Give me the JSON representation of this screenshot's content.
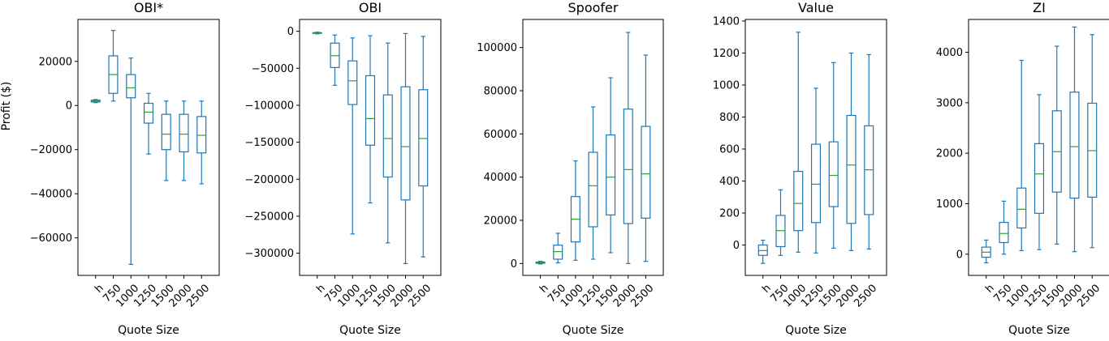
{
  "shared": {
    "xlabel": "Quote Size",
    "ylabel": "Profit ($)",
    "categories": [
      "h",
      "750",
      "1000",
      "1250",
      "1500",
      "2000",
      "2500"
    ],
    "box_color": "#1f77b4",
    "median_color": "#2ca02c"
  },
  "chart_data": [
    {
      "type": "box",
      "title": "OBI*",
      "xlabel": "Quote Size",
      "ylabel": "Profit ($)",
      "categories": [
        "h",
        "750",
        "1000",
        "1250",
        "1500",
        "2000",
        "2500"
      ],
      "ylim": [
        -77000,
        39000
      ],
      "yticks": [
        -60000,
        -40000,
        -20000,
        0,
        20000
      ],
      "ytick_labels": [
        "−60000",
        "−40000",
        "−20000",
        "0",
        "20000"
      ],
      "boxes": [
        {
          "min": 1300,
          "q1": 1600,
          "median": 2000,
          "q3": 2400,
          "max": 2700
        },
        {
          "min": 2000,
          "q1": 5500,
          "median": 14000,
          "q3": 22500,
          "max": 34000
        },
        {
          "min": -72000,
          "q1": 3500,
          "median": 8000,
          "q3": 14000,
          "max": 21500
        },
        {
          "min": -22000,
          "q1": -8000,
          "median": -3000,
          "q3": 1000,
          "max": 5500
        },
        {
          "min": -34000,
          "q1": -20000,
          "median": -13000,
          "q3": -4000,
          "max": 2000
        },
        {
          "min": -34000,
          "q1": -21000,
          "median": -13000,
          "q3": -4000,
          "max": 2000
        },
        {
          "min": -35500,
          "q1": -21500,
          "median": -13500,
          "q3": -5000,
          "max": 2000
        }
      ]
    },
    {
      "type": "box",
      "title": "OBI",
      "xlabel": "Quote Size",
      "categories": [
        "h",
        "750",
        "1000",
        "1250",
        "1500",
        "2000",
        "2500"
      ],
      "ylim": [
        -330000,
        16000
      ],
      "yticks": [
        -300000,
        -250000,
        -200000,
        -150000,
        -100000,
        -50000,
        0
      ],
      "ytick_labels": [
        "−300000",
        "−250000",
        "−200000",
        "−150000",
        "−100000",
        "−50000",
        "0"
      ],
      "boxes": [
        {
          "min": -3500,
          "q1": -2800,
          "median": -2300,
          "q3": -1800,
          "max": -1200
        },
        {
          "min": -73000,
          "q1": -49000,
          "median": -33000,
          "q3": -16000,
          "max": -5000
        },
        {
          "min": -274000,
          "q1": -99000,
          "median": -67000,
          "q3": -40000,
          "max": -9000
        },
        {
          "min": -232000,
          "q1": -154000,
          "median": -118000,
          "q3": -60000,
          "max": -6000
        },
        {
          "min": -286000,
          "q1": -197000,
          "median": -145000,
          "q3": -86000,
          "max": -16000
        },
        {
          "min": -314000,
          "q1": -228000,
          "median": -156000,
          "q3": -75000,
          "max": -3000
        },
        {
          "min": -305000,
          "q1": -209000,
          "median": -145000,
          "q3": -79000,
          "max": -7000
        }
      ]
    },
    {
      "type": "box",
      "title": "Spoofer",
      "xlabel": "Quote Size",
      "categories": [
        "h",
        "750",
        "1000",
        "1250",
        "1500",
        "2000",
        "2500"
      ],
      "ylim": [
        -5500,
        113000
      ],
      "yticks": [
        0,
        20000,
        40000,
        60000,
        80000,
        100000
      ],
      "ytick_labels": [
        "0",
        "20000",
        "40000",
        "60000",
        "80000",
        "100000"
      ],
      "boxes": [
        {
          "min": -200,
          "q1": 100,
          "median": 400,
          "q3": 700,
          "max": 1000
        },
        {
          "min": 300,
          "q1": 2000,
          "median": 5500,
          "q3": 8500,
          "max": 14000
        },
        {
          "min": 1500,
          "q1": 10000,
          "median": 20500,
          "q3": 31000,
          "max": 47500
        },
        {
          "min": 2000,
          "q1": 17000,
          "median": 36000,
          "q3": 51500,
          "max": 72500
        },
        {
          "min": 5000,
          "q1": 22500,
          "median": 40000,
          "q3": 59500,
          "max": 86000
        },
        {
          "min": 0,
          "q1": 18500,
          "median": 43500,
          "q3": 71500,
          "max": 107000
        },
        {
          "min": 1000,
          "q1": 21000,
          "median": 41500,
          "q3": 63500,
          "max": 96500
        }
      ]
    },
    {
      "type": "box",
      "title": "Value",
      "xlabel": "Quote Size",
      "categories": [
        "h",
        "750",
        "1000",
        "1250",
        "1500",
        "2000",
        "2500"
      ],
      "ylim": [
        -190,
        1410
      ],
      "yticks": [
        0,
        200,
        400,
        600,
        800,
        1000,
        1200,
        1400
      ],
      "ytick_labels": [
        "0",
        "200",
        "400",
        "600",
        "800",
        "1000",
        "1200",
        "1400"
      ],
      "boxes": [
        {
          "min": -115,
          "q1": -65,
          "median": -35,
          "q3": 0,
          "max": 30
        },
        {
          "min": -65,
          "q1": -10,
          "median": 90,
          "q3": 185,
          "max": 345
        },
        {
          "min": -45,
          "q1": 90,
          "median": 260,
          "q3": 460,
          "max": 1330
        },
        {
          "min": -50,
          "q1": 140,
          "median": 380,
          "q3": 630,
          "max": 980
        },
        {
          "min": -20,
          "q1": 240,
          "median": 435,
          "q3": 645,
          "max": 1140
        },
        {
          "min": -35,
          "q1": 135,
          "median": 500,
          "q3": 810,
          "max": 1200
        },
        {
          "min": -25,
          "q1": 190,
          "median": 470,
          "q3": 745,
          "max": 1190
        }
      ]
    },
    {
      "type": "box",
      "title": "ZI",
      "xlabel": "Quote Size",
      "categories": [
        "h",
        "750",
        "1000",
        "1250",
        "1500",
        "2000",
        "2500"
      ],
      "ylim": [
        -420,
        4650
      ],
      "yticks": [
        0,
        1000,
        2000,
        3000,
        4000
      ],
      "ytick_labels": [
        "0",
        "1000",
        "2000",
        "3000",
        "4000"
      ],
      "boxes": [
        {
          "min": -170,
          "q1": -60,
          "median": 40,
          "q3": 140,
          "max": 280
        },
        {
          "min": 0,
          "q1": 230,
          "median": 410,
          "q3": 630,
          "max": 1050
        },
        {
          "min": 70,
          "q1": 520,
          "median": 890,
          "q3": 1310,
          "max": 3840
        },
        {
          "min": 90,
          "q1": 810,
          "median": 1590,
          "q3": 2190,
          "max": 3160
        },
        {
          "min": 200,
          "q1": 1230,
          "median": 2030,
          "q3": 2840,
          "max": 4120
        },
        {
          "min": 50,
          "q1": 1110,
          "median": 2130,
          "q3": 3210,
          "max": 4500
        },
        {
          "min": 130,
          "q1": 1130,
          "median": 2050,
          "q3": 2990,
          "max": 4350
        }
      ]
    }
  ]
}
